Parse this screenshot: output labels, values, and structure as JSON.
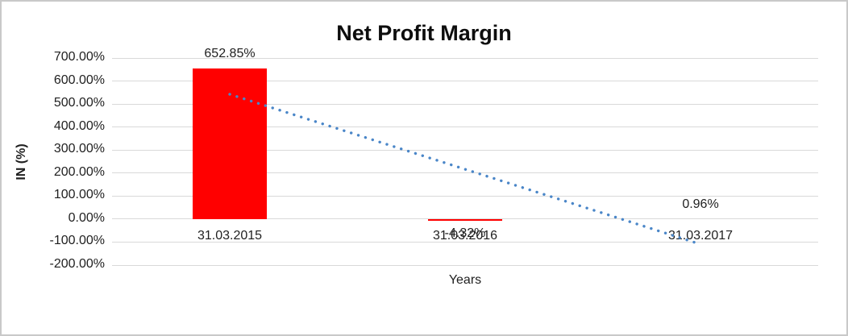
{
  "chart_data": {
    "type": "bar",
    "title": "Net Profit Margin",
    "xlabel": "Years",
    "ylabel": "IN (%)",
    "categories": [
      "31.03.2015",
      "31.03.2016",
      "31.03.2017"
    ],
    "values": [
      652.85,
      -4.32,
      0.96
    ],
    "data_labels": [
      "652.85%",
      "-4.32%",
      "0.96%"
    ],
    "ylim": [
      -200,
      700
    ],
    "ytick_step": 100,
    "ytick_labels": [
      "700.00%",
      "600.00%",
      "500.00%",
      "400.00%",
      "300.00%",
      "200.00%",
      "100.00%",
      "0.00%",
      "-100.00%",
      "-200.00%"
    ],
    "grid": true,
    "legend": "none",
    "trendline": {
      "style": "dotted",
      "start_value": 542.4,
      "end_value": -109.4
    }
  },
  "colors": {
    "bar": "#ff0000",
    "trendline": "#4a86c8",
    "gridline": "#d9d9d9",
    "text": "#1f1f1f",
    "frame_border": "#c9c9c9"
  }
}
